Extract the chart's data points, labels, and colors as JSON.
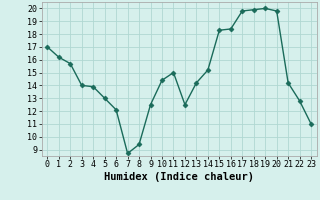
{
  "x": [
    0,
    1,
    2,
    3,
    4,
    5,
    6,
    7,
    8,
    9,
    10,
    11,
    12,
    13,
    14,
    15,
    16,
    17,
    18,
    19,
    20,
    21,
    22,
    23
  ],
  "y": [
    17.0,
    16.2,
    15.7,
    14.0,
    13.9,
    13.0,
    12.1,
    8.7,
    9.4,
    12.5,
    14.4,
    15.0,
    12.5,
    14.2,
    15.2,
    18.3,
    18.4,
    19.8,
    19.9,
    20.0,
    19.8,
    14.2,
    12.8,
    11.0
  ],
  "xlabel": "Humidex (Indice chaleur)",
  "xlim": [
    -0.5,
    23.5
  ],
  "ylim": [
    8.5,
    20.5
  ],
  "yticks": [
    9,
    10,
    11,
    12,
    13,
    14,
    15,
    16,
    17,
    18,
    19,
    20
  ],
  "xticks": [
    0,
    1,
    2,
    3,
    4,
    5,
    6,
    7,
    8,
    9,
    10,
    11,
    12,
    13,
    14,
    15,
    16,
    17,
    18,
    19,
    20,
    21,
    22,
    23
  ],
  "bg_color": "#d6f0ec",
  "grid_color": "#b0d8d2",
  "line_color": "#1a6b5a",
  "marker": "D",
  "marker_size": 2.5,
  "line_width": 1.0,
  "xlabel_fontsize": 7.5,
  "tick_fontsize": 6.0
}
